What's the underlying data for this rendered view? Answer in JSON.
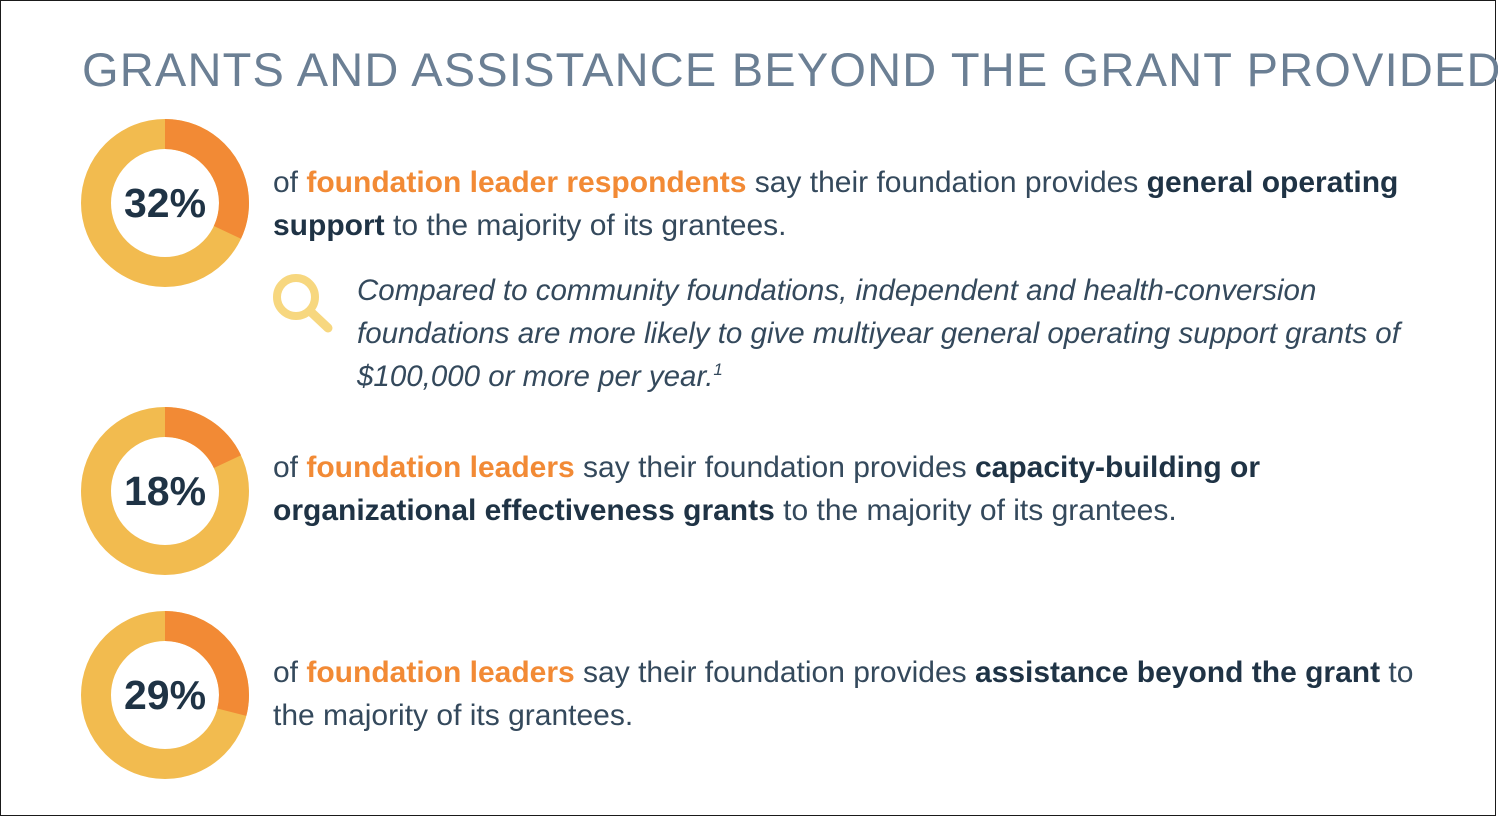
{
  "title": "GRANTS AND ASSISTANCE BEYOND THE GRANT PROVIDED",
  "colors": {
    "filled": "#f28a35",
    "remaining": "#f2bb4f",
    "title": "#6b7f94",
    "bold_text": "#1f3345",
    "body_text": "#34495c",
    "search_icon": "#f7d77f"
  },
  "chart_data": [
    {
      "type": "pie",
      "values": [
        32,
        68
      ],
      "label": "32%"
    },
    {
      "type": "pie",
      "values": [
        18,
        82
      ],
      "label": "18%"
    },
    {
      "type": "pie",
      "values": [
        29,
        71
      ],
      "label": "29%"
    }
  ],
  "stats": [
    {
      "pre": "of ",
      "highlight": "foundation leader respondents",
      "mid": " say their foundation provides ",
      "strong": "general operating support",
      "post": " to the majority of its grantees."
    },
    {
      "pre": "of ",
      "highlight": "foundation leaders",
      "mid": " say their foundation provides ",
      "strong": "capacity-building or organizational effectiveness grants",
      "post": " to the majority of its grantees."
    },
    {
      "pre": "of ",
      "highlight": "foundation leaders",
      "mid": " say their foundation provides ",
      "strong": "assistance beyond the grant",
      "post": " to the majority of its grantees."
    }
  ],
  "insight": {
    "icon": "magnifier-icon",
    "text": "Compared to community foundations, independent and health-conversion foundations are more likely to give multiyear general operating support grants of $100,000 or more per year.",
    "footnote": "1"
  }
}
